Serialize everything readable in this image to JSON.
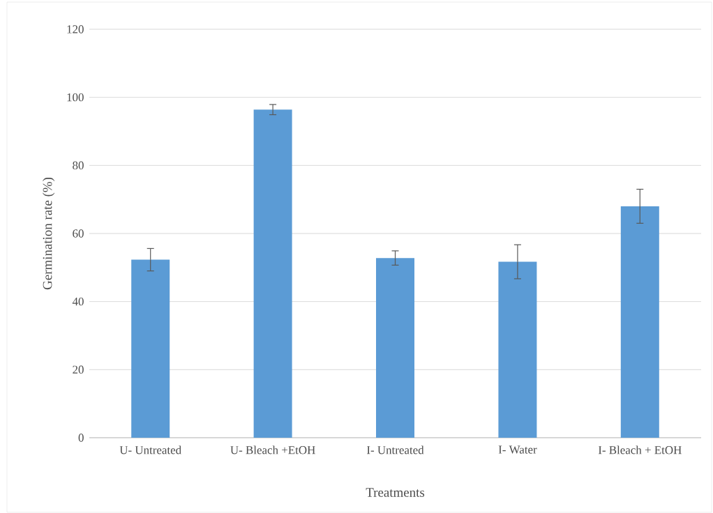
{
  "chart_data": {
    "type": "bar",
    "xlabel": "Treatments",
    "ylabel": "Germination rate (%)",
    "categories": [
      "U- Untreated",
      "U- Bleach +EtOH",
      "I- Untreated",
      "I- Water",
      "I- Bleach + EtOH"
    ],
    "values": [
      52.3,
      96.4,
      52.8,
      51.7,
      68.0
    ],
    "errors": [
      3.3,
      1.5,
      2.1,
      5.0,
      5.0
    ],
    "color": "#5b9bd5",
    "ylim": [
      0,
      120
    ],
    "yticks": [
      0,
      20,
      40,
      60,
      80,
      100,
      120
    ],
    "grid": "y"
  }
}
